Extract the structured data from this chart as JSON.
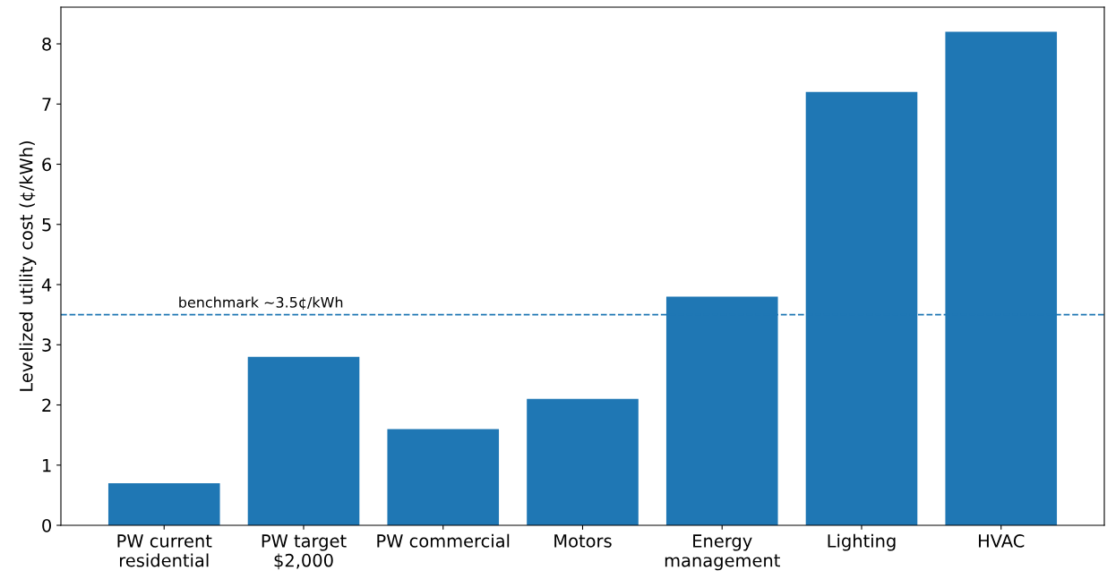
{
  "chart_data": {
    "type": "bar",
    "ylabel": "Levelized utility cost (¢/kWh)",
    "categories": [
      "PW current\nresidential",
      "PW target\n$2,000",
      "PW commercial",
      "Motors",
      "Energy\nmanagement",
      "Lighting",
      "HVAC"
    ],
    "values": [
      0.7,
      2.8,
      1.6,
      2.1,
      3.8,
      7.2,
      8.2
    ],
    "color": "#1f77b4",
    "ylim": [
      0,
      8.61
    ],
    "yticks": [
      0,
      1,
      2,
      3,
      4,
      5,
      6,
      7,
      8
    ],
    "ref_lines": [
      {
        "axis": "y",
        "value": 3.5,
        "label": "benchmark ~3.5¢/kWh",
        "color": "#1f77b4",
        "line_style": "dashed"
      }
    ],
    "grid": false,
    "legend": false
  }
}
